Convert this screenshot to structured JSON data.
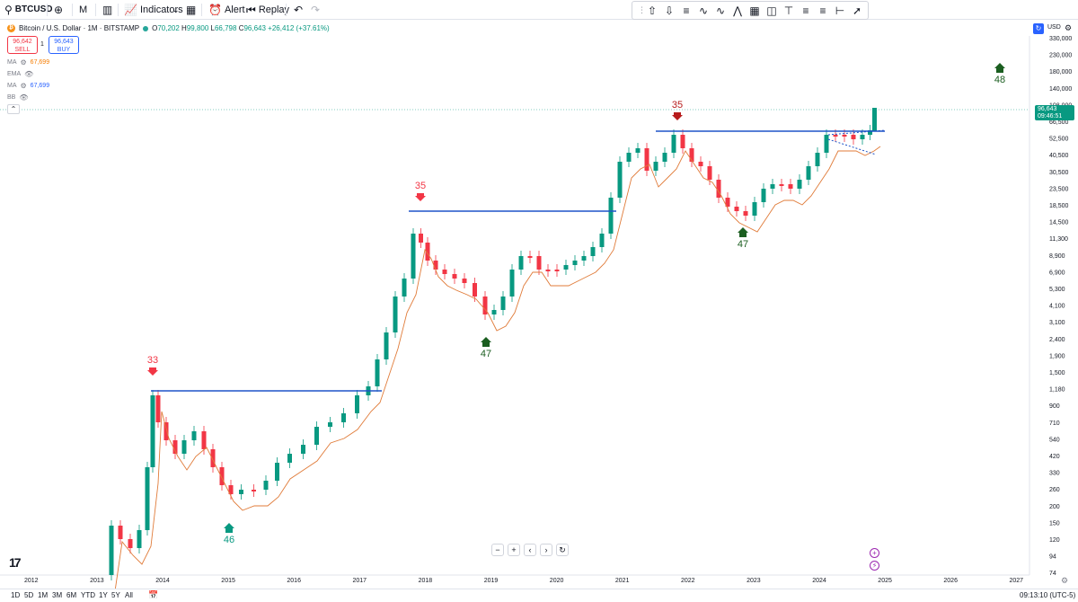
{
  "toolbar": {
    "symbol": "BTCUSD",
    "interval": "M",
    "indicators_label": "Indicators",
    "alert_label": "Alert",
    "replay_label": "Replay"
  },
  "legend": {
    "title": "Bitcoin / U.S. Dollar · 1M · BITSTAMP",
    "open": "70,202",
    "high": "99,800",
    "low": "66,798",
    "close": "96,643",
    "change": "+26,412 (+37.61%)",
    "sell_price": "96,642",
    "sell_label": "SELL",
    "buy_price": "96,643",
    "buy_label": "BUY",
    "spread": "1",
    "indicators": [
      {
        "name": "MA",
        "value": "67,699",
        "color": "#f57c00"
      },
      {
        "name": "EMA",
        "value": ""
      },
      {
        "name": "MA",
        "value": "67,699",
        "color": "#2962ff"
      },
      {
        "name": "BB",
        "value": ""
      }
    ]
  },
  "price_axis": {
    "currency": "USD",
    "last_price": "96,643",
    "countdown": "09:46:51",
    "labels": [
      "330,000",
      "230,000",
      "180,000",
      "140,000",
      "108,000",
      "66,500",
      "52,500",
      "40,500",
      "30,500",
      "23,500",
      "18,500",
      "14,500",
      "11,300",
      "8,900",
      "6,900",
      "5,300",
      "4,100",
      "3,100",
      "2,400",
      "1,900",
      "1,500",
      "1,180",
      "900",
      "710",
      "540",
      "420",
      "330",
      "260",
      "200",
      "150",
      "120",
      "94",
      "74"
    ]
  },
  "time_axis": {
    "labels": [
      "2012",
      "2013",
      "2014",
      "2015",
      "2016",
      "2017",
      "2018",
      "2019",
      "2020",
      "2021",
      "2022",
      "2023",
      "2024",
      "2025",
      "2026",
      "2027"
    ]
  },
  "annotations": [
    {
      "text": "33",
      "type": "down",
      "color": "#f23645"
    },
    {
      "text": "46",
      "type": "up",
      "color": "#089981"
    },
    {
      "text": "35",
      "type": "down",
      "color": "#f23645"
    },
    {
      "text": "47",
      "type": "up",
      "color": "#1b5e20"
    },
    {
      "text": "35",
      "type": "down",
      "color": "#b71c1c"
    },
    {
      "text": "47",
      "type": "up",
      "color": "#1b5e20"
    },
    {
      "text": "48",
      "type": "up",
      "color": "#1b5e20"
    }
  ],
  "bottom": {
    "ranges": [
      "1D",
      "5D",
      "1M",
      "3M",
      "6M",
      "YTD",
      "1Y",
      "5Y",
      "All"
    ],
    "clock": "09:13:10 (UTC-5)"
  },
  "colors": {
    "up": "#089981",
    "down": "#f23645",
    "ma": "#e07b39",
    "hline": "#1e53c8"
  }
}
